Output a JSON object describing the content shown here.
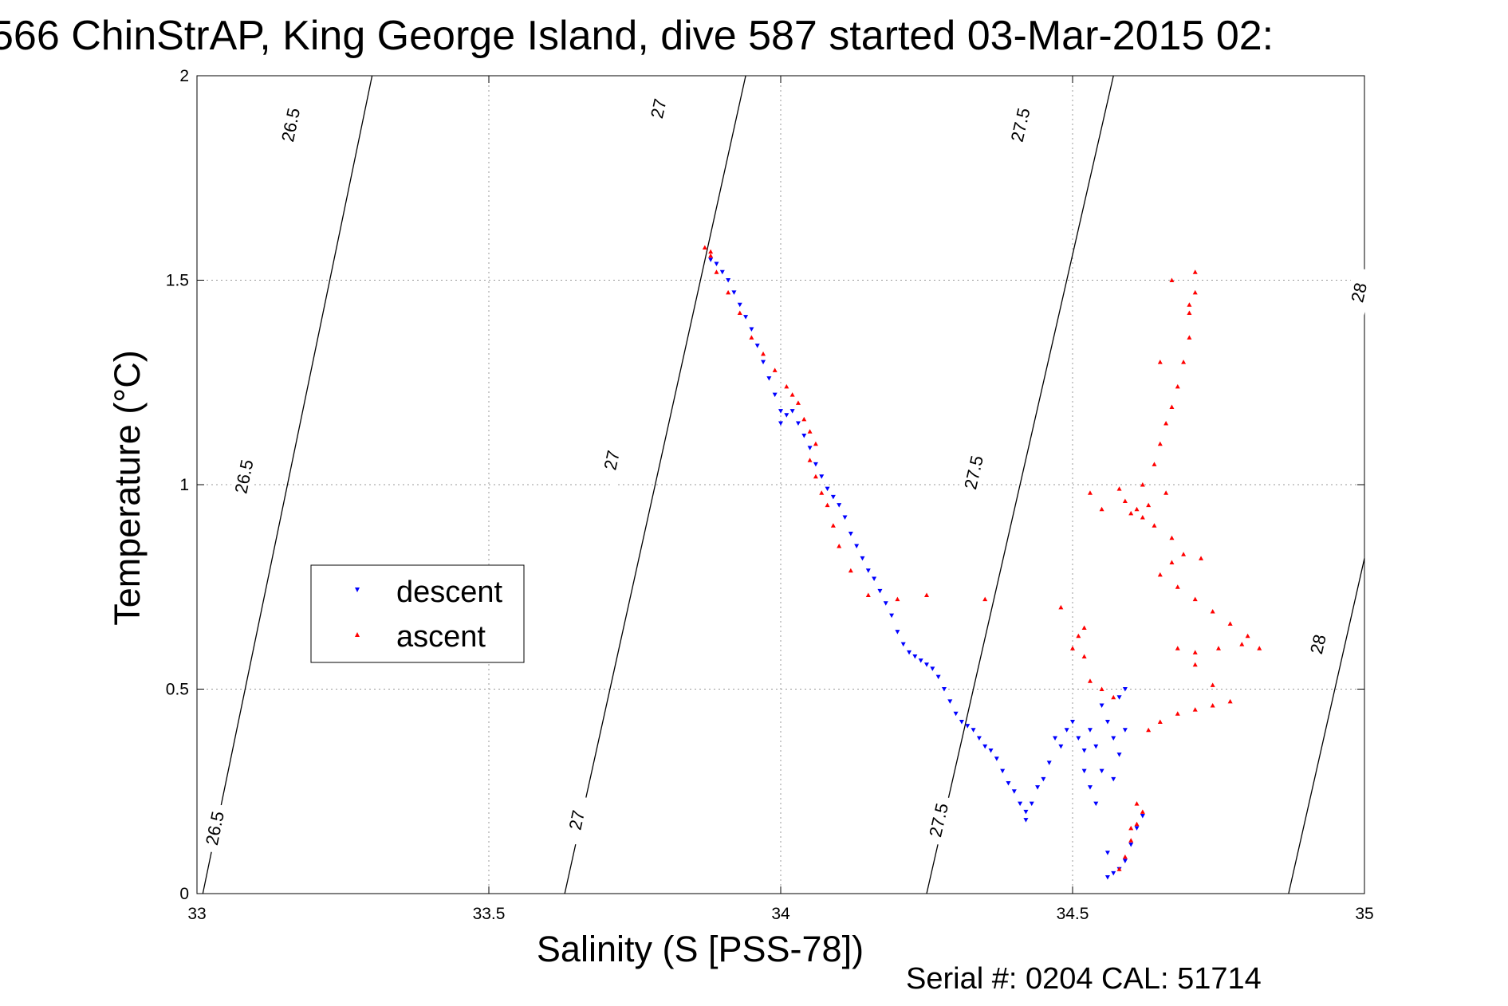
{
  "chart_data": {
    "type": "scatter",
    "title": "566 ChinStrAP, King George Island, dive 587 started 03-Mar-2015 02:",
    "xlabel": "Salinity (S [PSS-78])",
    "ylabel": "Temperature (°C)",
    "footer": "Serial #: 0204  CAL: 51714",
    "xlim": [
      33,
      35
    ],
    "ylim": [
      0,
      2
    ],
    "x_ticks": [
      "33",
      "33.5",
      "34",
      "34.5",
      "35"
    ],
    "y_ticks": [
      "0",
      "0.5",
      "1",
      "1.5",
      "2"
    ],
    "grid": true,
    "legend_position": "left-center",
    "colors": {
      "descent": "#0000ff",
      "ascent": "#ff0000",
      "axis": "#000000",
      "grid": "#9a9a9a"
    },
    "isopycnals": [
      {
        "label": "26.5",
        "points": [
          [
            33.01,
            0.0
          ],
          [
            33.3,
            2.0
          ]
        ],
        "label_positions": [
          [
            33.03,
            0.16
          ],
          [
            33.08,
            1.02
          ],
          [
            33.16,
            1.88
          ]
        ]
      },
      {
        "label": "27",
        "points": [
          [
            33.63,
            0.0
          ],
          [
            33.94,
            2.0
          ]
        ],
        "label_positions": [
          [
            33.65,
            0.18
          ],
          [
            33.71,
            1.06
          ],
          [
            33.79,
            1.92
          ]
        ]
      },
      {
        "label": "27.5",
        "points": [
          [
            34.25,
            0.0
          ],
          [
            34.57,
            2.0
          ]
        ],
        "label_positions": [
          [
            34.27,
            0.18
          ],
          [
            34.33,
            1.03
          ],
          [
            34.41,
            1.88
          ]
        ]
      },
      {
        "label": "28",
        "points": [
          [
            34.87,
            0.0
          ],
          [
            35.0,
            0.82
          ]
        ],
        "label_positions": [
          [
            34.92,
            0.61
          ],
          [
            34.99,
            1.47
          ]
        ]
      }
    ],
    "series": [
      {
        "name": "descent",
        "marker": "triangle-down",
        "points": [
          [
            33.88,
            1.55
          ],
          [
            33.89,
            1.54
          ],
          [
            33.9,
            1.52
          ],
          [
            33.91,
            1.5
          ],
          [
            33.92,
            1.47
          ],
          [
            33.93,
            1.44
          ],
          [
            33.94,
            1.41
          ],
          [
            33.95,
            1.38
          ],
          [
            33.96,
            1.34
          ],
          [
            33.97,
            1.3
          ],
          [
            33.98,
            1.26
          ],
          [
            33.99,
            1.22
          ],
          [
            34.0,
            1.18
          ],
          [
            34.0,
            1.15
          ],
          [
            34.01,
            1.17
          ],
          [
            34.02,
            1.18
          ],
          [
            34.03,
            1.15
          ],
          [
            34.04,
            1.12
          ],
          [
            34.05,
            1.09
          ],
          [
            34.06,
            1.05
          ],
          [
            34.07,
            1.02
          ],
          [
            34.08,
            0.99
          ],
          [
            34.09,
            0.97
          ],
          [
            34.1,
            0.95
          ],
          [
            34.11,
            0.92
          ],
          [
            34.12,
            0.88
          ],
          [
            34.13,
            0.85
          ],
          [
            34.14,
            0.82
          ],
          [
            34.15,
            0.79
          ],
          [
            34.16,
            0.77
          ],
          [
            34.17,
            0.74
          ],
          [
            34.18,
            0.71
          ],
          [
            34.19,
            0.68
          ],
          [
            34.2,
            0.64
          ],
          [
            34.21,
            0.61
          ],
          [
            34.22,
            0.59
          ],
          [
            34.23,
            0.58
          ],
          [
            34.24,
            0.57
          ],
          [
            34.25,
            0.56
          ],
          [
            34.26,
            0.55
          ],
          [
            34.27,
            0.53
          ],
          [
            34.28,
            0.5
          ],
          [
            34.29,
            0.47
          ],
          [
            34.3,
            0.44
          ],
          [
            34.31,
            0.42
          ],
          [
            34.32,
            0.41
          ],
          [
            34.33,
            0.4
          ],
          [
            34.34,
            0.38
          ],
          [
            34.35,
            0.36
          ],
          [
            34.36,
            0.35
          ],
          [
            34.37,
            0.33
          ],
          [
            34.38,
            0.3
          ],
          [
            34.39,
            0.27
          ],
          [
            34.4,
            0.25
          ],
          [
            34.41,
            0.22
          ],
          [
            34.42,
            0.2
          ],
          [
            34.42,
            0.18
          ],
          [
            34.43,
            0.22
          ],
          [
            34.44,
            0.26
          ],
          [
            34.45,
            0.28
          ],
          [
            34.46,
            0.32
          ],
          [
            34.47,
            0.38
          ],
          [
            34.48,
            0.36
          ],
          [
            34.49,
            0.4
          ],
          [
            34.5,
            0.42
          ],
          [
            34.51,
            0.38
          ],
          [
            34.52,
            0.35
          ],
          [
            34.52,
            0.3
          ],
          [
            34.53,
            0.4
          ],
          [
            34.53,
            0.26
          ],
          [
            34.54,
            0.36
          ],
          [
            34.54,
            0.22
          ],
          [
            34.55,
            0.46
          ],
          [
            34.55,
            0.3
          ],
          [
            34.56,
            0.42
          ],
          [
            34.57,
            0.38
          ],
          [
            34.57,
            0.28
          ],
          [
            34.58,
            0.48
          ],
          [
            34.58,
            0.34
          ],
          [
            34.59,
            0.5
          ],
          [
            34.59,
            0.4
          ],
          [
            34.56,
            0.1
          ],
          [
            34.56,
            0.04
          ],
          [
            34.57,
            0.05
          ],
          [
            34.58,
            0.06
          ],
          [
            34.59,
            0.08
          ],
          [
            34.6,
            0.12
          ],
          [
            34.61,
            0.16
          ],
          [
            34.62,
            0.19
          ]
        ]
      },
      {
        "name": "ascent",
        "marker": "triangle-up",
        "points": [
          [
            34.62,
            0.2
          ],
          [
            34.61,
            0.17
          ],
          [
            34.6,
            0.13
          ],
          [
            34.59,
            0.09
          ],
          [
            34.58,
            0.06
          ],
          [
            34.6,
            0.16
          ],
          [
            34.61,
            0.22
          ],
          [
            34.63,
            0.4
          ],
          [
            34.65,
            0.42
          ],
          [
            34.68,
            0.44
          ],
          [
            34.71,
            0.45
          ],
          [
            34.74,
            0.46
          ],
          [
            34.77,
            0.47
          ],
          [
            34.74,
            0.51
          ],
          [
            34.71,
            0.56
          ],
          [
            34.68,
            0.6
          ],
          [
            34.71,
            0.59
          ],
          [
            34.75,
            0.6
          ],
          [
            34.79,
            0.61
          ],
          [
            34.82,
            0.6
          ],
          [
            34.8,
            0.63
          ],
          [
            34.77,
            0.66
          ],
          [
            34.74,
            0.69
          ],
          [
            34.71,
            0.72
          ],
          [
            34.68,
            0.75
          ],
          [
            34.65,
            0.78
          ],
          [
            34.67,
            0.81
          ],
          [
            34.69,
            0.83
          ],
          [
            34.72,
            0.82
          ],
          [
            34.67,
            0.87
          ],
          [
            34.64,
            0.9
          ],
          [
            34.62,
            0.92
          ],
          [
            34.61,
            0.94
          ],
          [
            34.59,
            0.96
          ],
          [
            34.58,
            0.99
          ],
          [
            34.6,
            0.93
          ],
          [
            34.63,
            0.95
          ],
          [
            34.66,
            0.98
          ],
          [
            34.53,
            0.98
          ],
          [
            34.55,
            0.94
          ],
          [
            34.62,
            1.0
          ],
          [
            34.64,
            1.05
          ],
          [
            34.65,
            1.1
          ],
          [
            34.66,
            1.15
          ],
          [
            34.67,
            1.19
          ],
          [
            34.68,
            1.24
          ],
          [
            34.69,
            1.3
          ],
          [
            34.7,
            1.36
          ],
          [
            34.7,
            1.42
          ],
          [
            34.71,
            1.47
          ],
          [
            34.71,
            1.52
          ],
          [
            34.65,
            1.3
          ],
          [
            34.67,
            1.5
          ],
          [
            34.7,
            1.44
          ],
          [
            34.5,
            0.6
          ],
          [
            34.51,
            0.63
          ],
          [
            34.52,
            0.58
          ],
          [
            34.53,
            0.52
          ],
          [
            34.55,
            0.5
          ],
          [
            34.57,
            0.48
          ],
          [
            34.52,
            0.65
          ],
          [
            34.48,
            0.7
          ],
          [
            34.35,
            0.72
          ],
          [
            34.25,
            0.73
          ],
          [
            34.2,
            0.72
          ],
          [
            34.15,
            0.73
          ],
          [
            34.12,
            0.79
          ],
          [
            34.1,
            0.85
          ],
          [
            34.09,
            0.9
          ],
          [
            34.08,
            0.95
          ],
          [
            34.07,
            0.98
          ],
          [
            34.06,
            1.02
          ],
          [
            34.05,
            1.06
          ],
          [
            34.06,
            1.1
          ],
          [
            34.05,
            1.13
          ],
          [
            34.04,
            1.16
          ],
          [
            34.03,
            1.2
          ],
          [
            34.02,
            1.22
          ],
          [
            34.01,
            1.24
          ],
          [
            33.99,
            1.28
          ],
          [
            33.97,
            1.32
          ],
          [
            33.95,
            1.36
          ],
          [
            33.93,
            1.42
          ],
          [
            33.91,
            1.47
          ],
          [
            33.89,
            1.52
          ],
          [
            33.88,
            1.57
          ],
          [
            33.87,
            1.58
          ],
          [
            33.88,
            1.56
          ]
        ]
      }
    ]
  }
}
